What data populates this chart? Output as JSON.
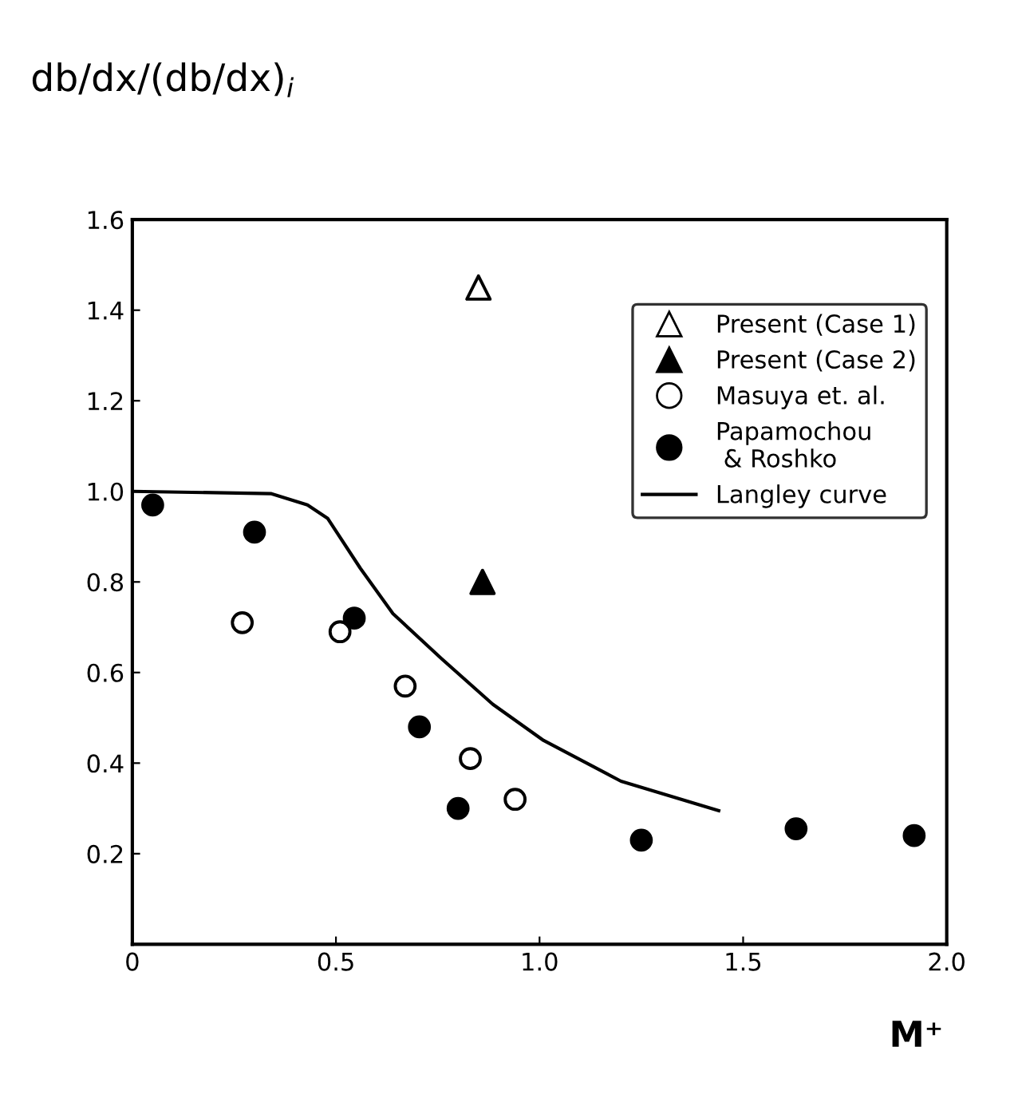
{
  "chart_data": {
    "type": "scatter",
    "xlabel": "M⁺",
    "ylabel": "db/dx/(db/dx)$_{i}$",
    "xlim": [
      0,
      2.0
    ],
    "ylim": [
      0,
      1.6
    ],
    "xticks": [
      {
        "value": 0,
        "label": "0"
      },
      0.5,
      {
        "value": 1.0,
        "label": "1.0"
      },
      1.5,
      {
        "value": 2.0,
        "label": "2.0"
      }
    ],
    "yticks": [
      0.2,
      0.4,
      0.6,
      0.8,
      {
        "value": 1.0,
        "label": "1.0"
      },
      1.2,
      1.4,
      1.6
    ],
    "grid": false,
    "legend": "top right",
    "series": [
      {
        "name": "Present (Case 1)",
        "marker": "triangle",
        "color": "#ffffff",
        "x": [
          0.85
        ],
        "values": [
          1.45
        ]
      },
      {
        "name": "Present (Case 2)",
        "marker": "triangle",
        "color": "#000000",
        "x": [
          0.86
        ],
        "values": [
          0.8
        ]
      },
      {
        "name": "Masuya et. al.",
        "marker": "circle",
        "color": "#ffffff",
        "x": [
          0.27,
          0.51,
          0.67,
          0.83,
          0.94
        ],
        "values": [
          0.71,
          0.69,
          0.57,
          0.41,
          0.32
        ]
      },
      {
        "name": "Papamochou\n & Roshko",
        "marker": "circle",
        "color": "#000000",
        "x": [
          0.05,
          0.3,
          0.545,
          0.705,
          0.8,
          1.25,
          1.63,
          1.92
        ],
        "values": [
          0.97,
          0.91,
          0.72,
          0.48,
          0.3,
          0.23,
          0.255,
          0.24
        ]
      },
      {
        "name": "Langley curve",
        "type": "line",
        "marker": "none",
        "line_style": "solid",
        "color": "#000000",
        "x": [
          0.0,
          0.34,
          0.43,
          0.48,
          0.56,
          0.64,
          0.76,
          0.885,
          1.01,
          1.2,
          1.44
        ],
        "values": [
          1.0,
          0.995,
          0.97,
          0.94,
          0.83,
          0.73,
          0.63,
          0.53,
          0.45,
          0.36,
          0.295
        ]
      }
    ]
  }
}
